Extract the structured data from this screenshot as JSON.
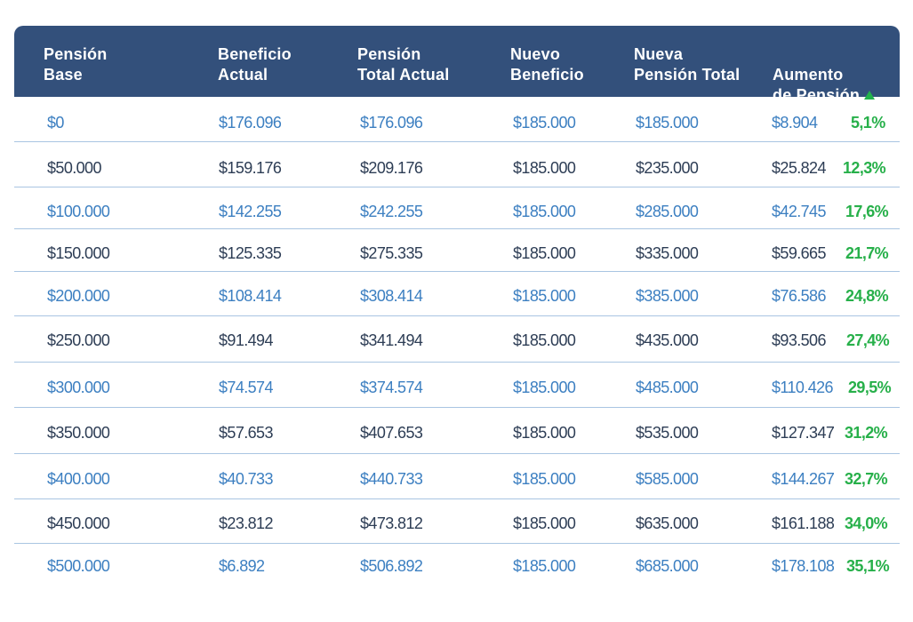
{
  "table": {
    "headers": [
      "Pensión\nBase",
      "Beneficio\nActual",
      "Pensión\nTotal Actual",
      "Nuevo\nBeneficio",
      "Nueva\nPensión Total",
      "Aumento\nde Pensión"
    ],
    "sort_indicator": "triangle-up-icon",
    "colors": {
      "header_bg": "#33507b",
      "header_text": "#ffffff",
      "row_text_blue": "#3c7fc1",
      "row_text_dark": "#2d3d55",
      "percent_green": "#27b04a",
      "divider": "#a9c5e2"
    },
    "rows": [
      {
        "base": "$0",
        "actual": "$176.096",
        "total_actual": "$176.096",
        "nuevo": "$185.000",
        "nueva_total": "$185.000",
        "aumento": "$8.904",
        "pct": "5,1%"
      },
      {
        "base": "$50.000",
        "actual": "$159.176",
        "total_actual": "$209.176",
        "nuevo": "$185.000",
        "nueva_total": "$235.000",
        "aumento": "$25.824",
        "pct": "12,3%"
      },
      {
        "base": "$100.000",
        "actual": "$142.255",
        "total_actual": "$242.255",
        "nuevo": "$185.000",
        "nueva_total": "$285.000",
        "aumento": "$42.745",
        "pct": "17,6%"
      },
      {
        "base": "$150.000",
        "actual": "$125.335",
        "total_actual": "$275.335",
        "nuevo": "$185.000",
        "nueva_total": "$335.000",
        "aumento": "$59.665",
        "pct": "21,7%"
      },
      {
        "base": "$200.000",
        "actual": "$108.414",
        "total_actual": "$308.414",
        "nuevo": "$185.000",
        "nueva_total": "$385.000",
        "aumento": "$76.586",
        "pct": "24,8%"
      },
      {
        "base": "$250.000",
        "actual": "$91.494",
        "total_actual": "$341.494",
        "nuevo": "$185.000",
        "nueva_total": "$435.000",
        "aumento": "$93.506",
        "pct": "27,4%"
      },
      {
        "base": "$300.000",
        "actual": "$74.574",
        "total_actual": "$374.574",
        "nuevo": "$185.000",
        "nueva_total": "$485.000",
        "aumento": "$110.426",
        "pct": "29,5%"
      },
      {
        "base": "$350.000",
        "actual": "$57.653",
        "total_actual": "$407.653",
        "nuevo": "$185.000",
        "nueva_total": "$535.000",
        "aumento": "$127.347",
        "pct": "31,2%"
      },
      {
        "base": "$400.000",
        "actual": "$40.733",
        "total_actual": "$440.733",
        "nuevo": "$185.000",
        "nueva_total": "$585.000",
        "aumento": "$144.267",
        "pct": "32,7%"
      },
      {
        "base": "$450.000",
        "actual": "$23.812",
        "total_actual": "$473.812",
        "nuevo": "$185.000",
        "nueva_total": "$635.000",
        "aumento": "$161.188",
        "pct": "34,0%"
      },
      {
        "base": "$500.000",
        "actual": "$6.892",
        "total_actual": "$506.892",
        "nuevo": "$185.000",
        "nueva_total": "$685.000",
        "aumento": "$178.108",
        "pct": "35,1%"
      }
    ]
  }
}
